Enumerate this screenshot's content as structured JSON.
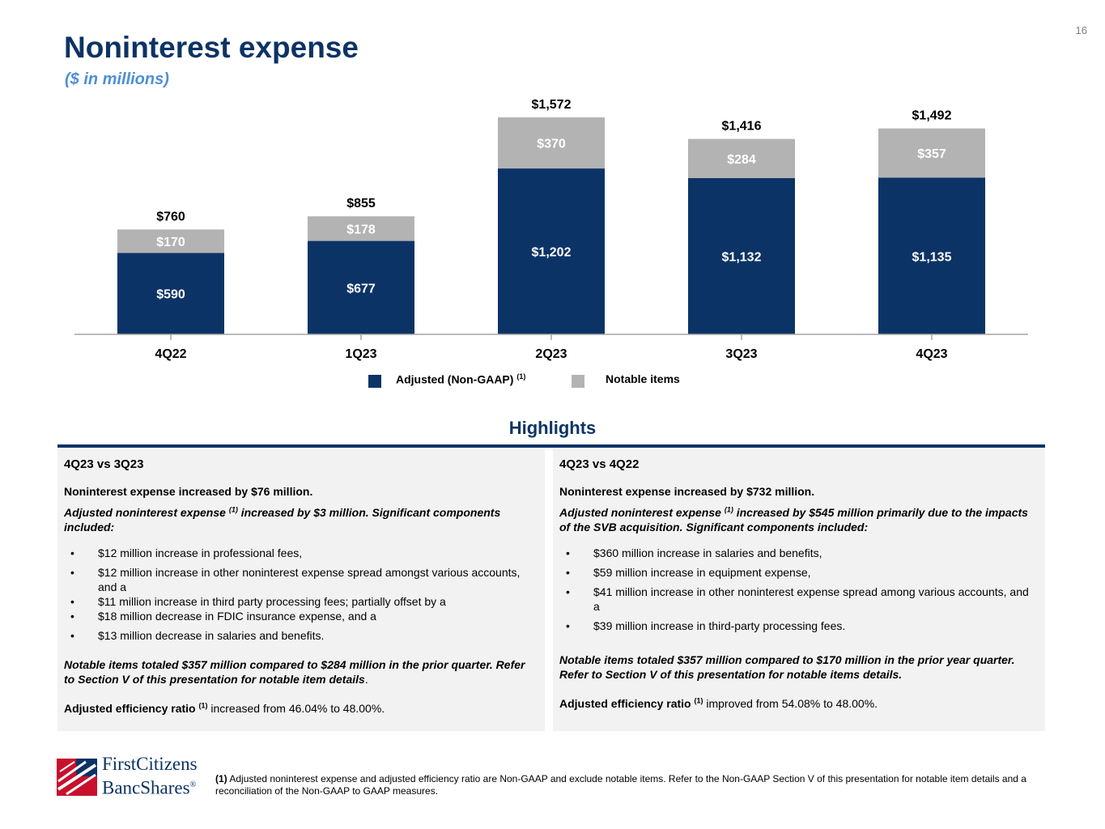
{
  "page_number": "16",
  "title": "Noninterest expense",
  "subtitle": "($ in millions)",
  "colors": {
    "adjusted": "#0c3366",
    "notable": "#b3b3b3",
    "axis": "#a6a6a6",
    "title": "#0c3366",
    "subtitle": "#4e8fd6"
  },
  "chart_data": {
    "type": "bar",
    "stacked": true,
    "categories": [
      "4Q22",
      "1Q23",
      "2Q23",
      "3Q23",
      "4Q23"
    ],
    "series": [
      {
        "name": "Adjusted (Non-GAAP)",
        "values": [
          590,
          677,
          1202,
          1132,
          1135
        ],
        "labels": [
          "$590",
          "$677",
          "$1,202",
          "$1,132",
          "$1,135"
        ]
      },
      {
        "name": "Notable items",
        "values": [
          170,
          178,
          370,
          284,
          357
        ],
        "labels": [
          "$170",
          "$178",
          "$370",
          "$284",
          "$357"
        ]
      }
    ],
    "totals": [
      760,
      855,
      1572,
      1416,
      1492
    ],
    "total_labels": [
      "$760",
      "$855",
      "$1,572",
      "$1,416",
      "$1,492"
    ],
    "ylim": [
      0,
      1572
    ],
    "grid": false
  },
  "legend": {
    "adjusted_label": "Adjusted (Non-GAAP)",
    "adjusted_note": "(1)",
    "notable_label": "Notable items"
  },
  "highlights": {
    "title": "Highlights",
    "left": {
      "heading": "4Q23 vs 3Q23",
      "lead": "Noninterest expense increased by $76 million.",
      "adj_prefix": "Adjusted noninterest expense",
      "adj_note": "(1)",
      "adj_suffix": " increased by $3 million. Significant components included:",
      "bullets": [
        "$12 million increase in professional fees,",
        "$12 million increase in other noninterest expense spread amongst various accounts, and a",
        "$11 million increase in third party processing fees; partially offset by a",
        "$18 million decrease in FDIC insurance expense, and a",
        "$13 million decrease in salaries and benefits."
      ],
      "notable": "Notable items totaled $357 million compared to $284 million in the prior quarter. Refer to Section V of this presentation for notable item details",
      "notable_end": ".",
      "ratio_label": "Adjusted efficiency ratio",
      "ratio_note": "(1)",
      "ratio_text": " increased from 46.04% to 48.00%."
    },
    "right": {
      "heading": "4Q23 vs 4Q22",
      "lead": "Noninterest expense increased by $732 million.",
      "adj_prefix": "Adjusted noninterest expense",
      "adj_note": "(1)",
      "adj_suffix": " increased by $545 million primarily due to the impacts of the SVB acquisition. Significant components included:",
      "bullets": [
        "$360 million increase in salaries and benefits,",
        "$59 million increase in equipment expense,",
        "$41 million increase in other noninterest expense spread among various accounts, and a",
        "$39 million increase in third-party processing fees."
      ],
      "notable": "Notable items totaled $357 million compared to $170 million in the prior year quarter. Refer to Section V of this presentation for notable items details.",
      "ratio_label": "Adjusted efficiency ratio",
      "ratio_note": "(1)",
      "ratio_text": " improved from 54.08% to 48.00%."
    }
  },
  "logo": {
    "line1": "FirstCitizens",
    "line2": "BancShares",
    "mark": "®"
  },
  "footnote": {
    "marker": "(1)",
    "text": " Adjusted noninterest expense and adjusted efficiency ratio are Non-GAAP and exclude notable items. Refer to the Non-GAAP Section V of this presentation for notable item details and a reconciliation of the Non-GAAP to GAAP measures."
  }
}
